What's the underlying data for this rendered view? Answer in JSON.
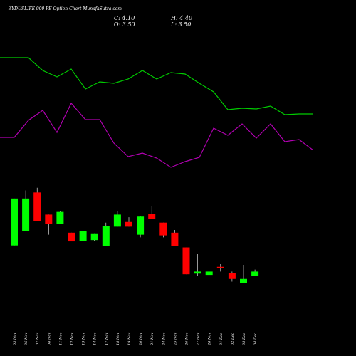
{
  "header": {
    "title": "ZYDUSLIFE 900  PE Option  Chart MunafaSutra.com",
    "close_label": "C: 4.10",
    "high_label": "H: 4.40",
    "open_label": "O: 3.50",
    "low_label": "L: 3.50"
  },
  "colors": {
    "background": "#000000",
    "up": "#00ff00",
    "down": "#ff0000",
    "line_upper": "#00cc00",
    "line_lower": "#b000b0",
    "wick": "#ffffff",
    "text": "#ffffff"
  },
  "chart_data": {
    "type": "candlestick",
    "price_ylim": [
      0,
      17
    ],
    "categories": [
      "03 Nov",
      "06 Nov",
      "07 Nov",
      "08 Nov",
      "11 Nov",
      "12 Nov",
      "13 Nov",
      "14 Nov",
      "17 Nov",
      "18 Nov",
      "19 Nov",
      "20 Nov",
      "21 Nov",
      "24 Nov",
      "25 Nov",
      "26 Nov",
      "27 Nov",
      "28 Nov",
      "01 Dec",
      "02 Dec",
      "03 Dec",
      "04 Dec"
    ],
    "candles": [
      {
        "open": 8.0,
        "high": 15.0,
        "low": 8.0,
        "close": 15.0
      },
      {
        "open": 10.2,
        "high": 16.2,
        "low": 10.2,
        "close": 15.0
      },
      {
        "open": 15.9,
        "high": 16.6,
        "low": 11.6,
        "close": 11.6
      },
      {
        "open": 12.6,
        "high": 12.6,
        "low": 9.6,
        "close": 11.2
      },
      {
        "open": 11.2,
        "high": 13.1,
        "low": 11.2,
        "close": 13.0
      },
      {
        "open": 9.9,
        "high": 9.9,
        "low": 8.6,
        "close": 8.6
      },
      {
        "open": 8.7,
        "high": 10.3,
        "low": 8.7,
        "close": 10.1
      },
      {
        "open": 8.8,
        "high": 9.8,
        "low": 8.6,
        "close": 9.8
      },
      {
        "open": 7.9,
        "high": 11.4,
        "low": 7.9,
        "close": 10.9
      },
      {
        "open": 10.8,
        "high": 13.1,
        "low": 10.8,
        "close": 12.6
      },
      {
        "open": 11.5,
        "high": 12.2,
        "low": 10.8,
        "close": 10.8
      },
      {
        "open": 9.6,
        "high": 12.4,
        "low": 9.2,
        "close": 12.3
      },
      {
        "open": 12.7,
        "high": 13.9,
        "low": 11.9,
        "close": 11.9
      },
      {
        "open": 11.4,
        "high": 11.4,
        "low": 9.2,
        "close": 9.5
      },
      {
        "open": 9.9,
        "high": 10.3,
        "low": 7.9,
        "close": 7.9
      },
      {
        "open": 7.7,
        "high": 7.7,
        "low": 3.7,
        "close": 3.7
      },
      {
        "open": 3.8,
        "high": 6.7,
        "low": 3.4,
        "close": 4.1
      },
      {
        "open": 3.6,
        "high": 4.6,
        "low": 3.6,
        "close": 4.1
      },
      {
        "open": 4.7,
        "high": 5.2,
        "low": 4.1,
        "close": 4.5
      },
      {
        "open": 3.9,
        "high": 4.1,
        "low": 2.6,
        "close": 3.0
      },
      {
        "open": 2.4,
        "high": 5.1,
        "low": 2.4,
        "close": 3.0
      },
      {
        "open": 3.5,
        "high": 4.4,
        "low": 3.5,
        "close": 4.1
      }
    ],
    "upper_line": [
      81,
      81,
      81,
      99,
      108,
      97,
      125,
      115,
      117,
      111,
      99,
      111,
      102,
      104,
      117,
      129,
      154,
      152,
      153,
      149,
      161,
      160,
      160
    ],
    "lower_line": [
      193,
      193,
      169,
      155,
      186,
      145,
      168,
      168,
      201,
      220,
      215,
      222,
      235,
      227,
      221,
      180,
      190,
      174,
      194,
      174,
      199,
      196,
      211
    ]
  }
}
